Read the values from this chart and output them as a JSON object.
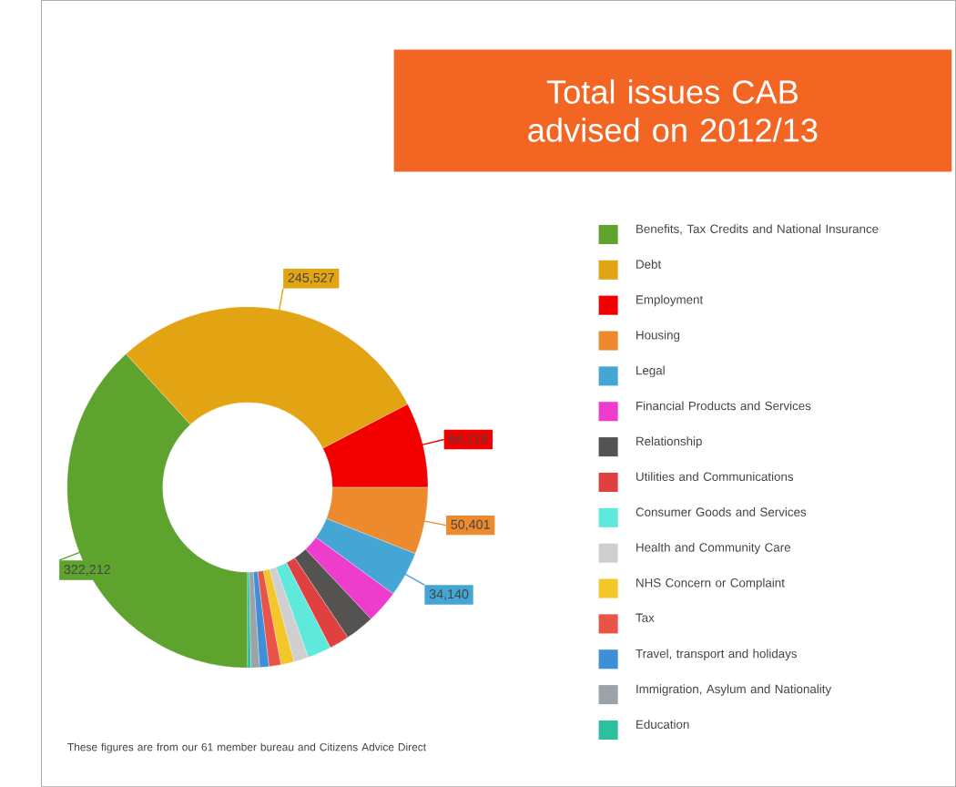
{
  "chart_data": {
    "type": "donut",
    "title": "Total issues CAB advised on 2012/13",
    "categories": [
      "Benefits, Tax Credits and National Insurance",
      "Debt",
      "Employment",
      "Housing",
      "Legal",
      "Financial Products and Services",
      "Relationship",
      "Utilities and Communications",
      "Consumer Goods and Services",
      "Health and Community Care",
      "NHS Concern or Complaint",
      "Tax",
      "Travel, transport and holidays",
      "Immigration, Asylum and Nationality",
      "Education"
    ],
    "values": [
      322212,
      245527,
      64218,
      50401,
      34140,
      25000,
      22000,
      15000,
      18000,
      11000,
      10000,
      9000,
      7000,
      6500,
      2500
    ],
    "colors": [
      "#5ea32e",
      "#e3a413",
      "#f20000",
      "#ee8a2e",
      "#45a6d6",
      "#ee3ccd",
      "#555252",
      "#e04040",
      "#5fe8dc",
      "#cfcfcf",
      "#f3c62a",
      "#ea5448",
      "#3f8fd8",
      "#99a3a8",
      "#2cbfa0"
    ],
    "value_labels": [
      "322,212",
      "245,527",
      "64,218",
      "50,401",
      "34,140",
      null,
      null,
      null,
      null,
      null,
      null,
      null,
      null,
      null,
      null
    ],
    "legend": "right",
    "annotations": [
      "These figures are from our 61 member bureau and Citizens Advice Direct"
    ]
  }
}
